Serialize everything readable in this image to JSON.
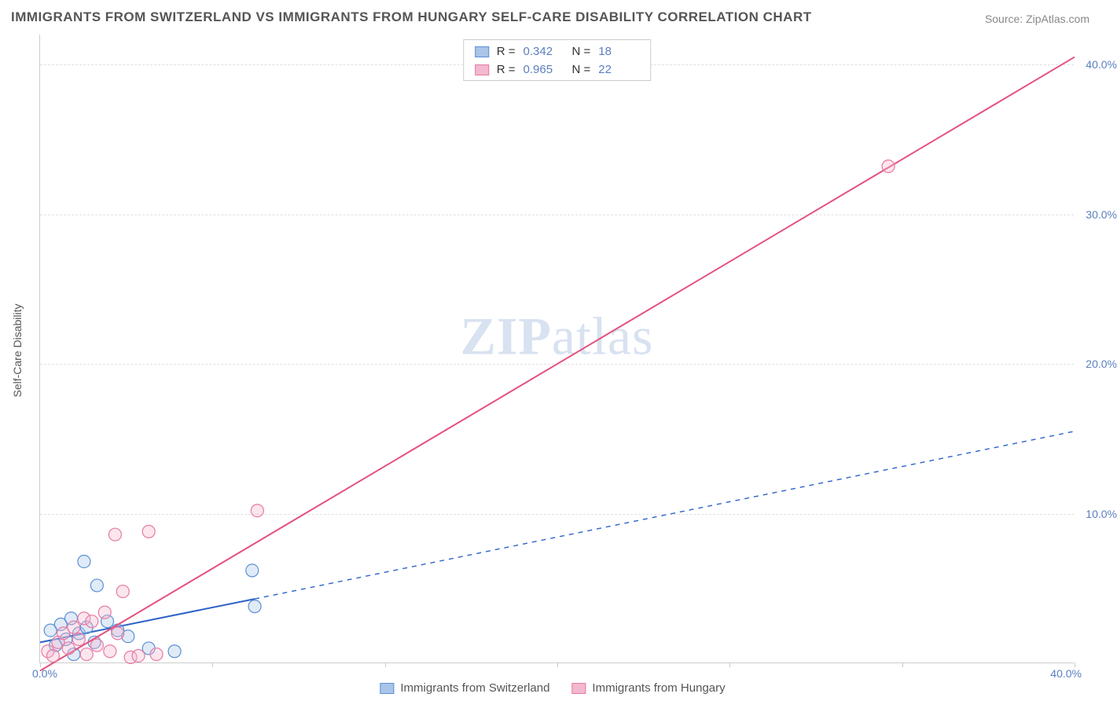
{
  "title": "IMMIGRANTS FROM SWITZERLAND VS IMMIGRANTS FROM HUNGARY SELF-CARE DISABILITY CORRELATION CHART",
  "source": "Source: ZipAtlas.com",
  "ylabel": "Self-Care Disability",
  "watermark_a": "ZIP",
  "watermark_b": "atlas",
  "chart": {
    "type": "scatter",
    "background_color": "#ffffff",
    "grid_color": "#e0e0e0",
    "axis_color": "#cccccc",
    "tick_color": "#5b7fbf",
    "text_color": "#555555",
    "xlim": [
      0,
      40
    ],
    "ylim": [
      0,
      42
    ],
    "xtick_positions": [
      0,
      6.67,
      13.33,
      20,
      26.67,
      33.33,
      40
    ],
    "xtick_labels_visible": {
      "0": "0.0%",
      "40": "40.0%"
    },
    "ytick_positions": [
      10,
      20,
      30,
      40
    ],
    "ytick_labels": [
      "10.0%",
      "20.0%",
      "30.0%",
      "40.0%"
    ],
    "marker_radius": 8,
    "marker_stroke_width": 1.2,
    "marker_fill_opacity": 0.35,
    "regression_line_width": 2,
    "series": [
      {
        "name": "Immigrants from Switzerland",
        "color_stroke": "#5b8fd6",
        "color_fill": "#a9c5e8",
        "line_color": "#2d63c8",
        "r": "0.342",
        "n": "18",
        "points": [
          [
            0.4,
            2.2
          ],
          [
            0.6,
            1.2
          ],
          [
            0.8,
            2.6
          ],
          [
            1.0,
            1.6
          ],
          [
            1.2,
            3.0
          ],
          [
            1.3,
            0.6
          ],
          [
            1.5,
            2.0
          ],
          [
            1.7,
            6.8
          ],
          [
            1.8,
            2.4
          ],
          [
            2.1,
            1.4
          ],
          [
            2.2,
            5.2
          ],
          [
            2.6,
            2.8
          ],
          [
            3.0,
            2.2
          ],
          [
            3.4,
            1.8
          ],
          [
            4.2,
            1.0
          ],
          [
            5.2,
            0.8
          ],
          [
            8.2,
            6.2
          ],
          [
            8.3,
            3.8
          ]
        ],
        "regression": {
          "x1": 0,
          "y1": 1.4,
          "x2_solid": 8.3,
          "y2_solid": 4.3,
          "x2_dash": 40,
          "y2_dash": 15.5
        }
      },
      {
        "name": "Immigrants from Hungary",
        "color_stroke": "#e67aa3",
        "color_fill": "#f3b8cf",
        "line_color": "#e5517f",
        "r": "0.965",
        "n": "22",
        "points": [
          [
            0.3,
            0.8
          ],
          [
            0.5,
            0.5
          ],
          [
            0.7,
            1.4
          ],
          [
            0.9,
            2.0
          ],
          [
            1.1,
            1.0
          ],
          [
            1.3,
            2.4
          ],
          [
            1.5,
            1.6
          ],
          [
            1.7,
            3.0
          ],
          [
            1.8,
            0.6
          ],
          [
            2.0,
            2.8
          ],
          [
            2.2,
            1.2
          ],
          [
            2.5,
            3.4
          ],
          [
            2.7,
            0.8
          ],
          [
            2.9,
            8.6
          ],
          [
            3.0,
            2.0
          ],
          [
            3.2,
            4.8
          ],
          [
            3.5,
            0.4
          ],
          [
            3.8,
            0.5
          ],
          [
            4.2,
            8.8
          ],
          [
            4.5,
            0.6
          ],
          [
            8.4,
            10.2
          ],
          [
            32.8,
            33.2
          ]
        ],
        "regression": {
          "x1": 0,
          "y1": -0.5,
          "x2_solid": 40,
          "y2_solid": 40.5,
          "x2_dash": 40,
          "y2_dash": 40.5
        }
      }
    ]
  },
  "top_legend": {
    "rows": [
      {
        "swatch_fill": "#a9c5e8",
        "swatch_stroke": "#5b8fd6",
        "r_label": "R =",
        "r_val": "0.342",
        "n_label": "N =",
        "n_val": "18"
      },
      {
        "swatch_fill": "#f3b8cf",
        "swatch_stroke": "#e67aa3",
        "r_label": "R =",
        "r_val": "0.965",
        "n_label": "N =",
        "n_val": "22"
      }
    ]
  },
  "bottom_legend": {
    "items": [
      {
        "swatch_fill": "#a9c5e8",
        "swatch_stroke": "#5b8fd6",
        "label": "Immigrants from Switzerland"
      },
      {
        "swatch_fill": "#f3b8cf",
        "swatch_stroke": "#e67aa3",
        "label": "Immigrants from Hungary"
      }
    ]
  }
}
